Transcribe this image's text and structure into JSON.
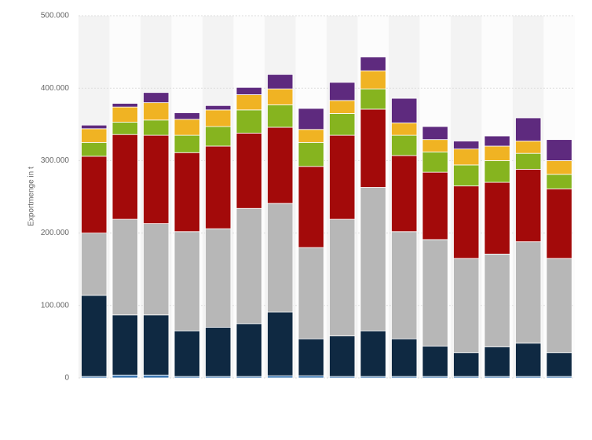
{
  "chart_data": {
    "type": "stacked_bar",
    "y_label": "Exportmenge in t",
    "categories": [
      null,
      null,
      null,
      null,
      null,
      null,
      null,
      null,
      null,
      null,
      null,
      null,
      null,
      null,
      null,
      null
    ],
    "series": [
      {
        "color": "#3a75b0",
        "values": [
          2000,
          4000,
          4000,
          2000,
          2000,
          2000,
          3000,
          3000,
          2000,
          2000,
          2000,
          2000,
          2000,
          2000,
          2000,
          2000
        ]
      },
      {
        "color": "#0f2942",
        "values": [
          112000,
          83000,
          83000,
          63000,
          68000,
          73000,
          88000,
          51000,
          56000,
          63000,
          52000,
          42000,
          33000,
          41000,
          46000,
          33000
        ]
      },
      {
        "color": "#b7b7b7",
        "values": [
          86000,
          132000,
          126000,
          137000,
          136000,
          159000,
          150000,
          126000,
          161000,
          198000,
          148000,
          147000,
          130000,
          128000,
          140000,
          130000
        ]
      },
      {
        "color": "#a30a0a",
        "values": [
          106000,
          117000,
          122000,
          109000,
          114000,
          104000,
          105000,
          112000,
          116000,
          108000,
          105000,
          93000,
          100000,
          99000,
          100000,
          96000
        ]
      },
      {
        "color": "#86b41f",
        "values": [
          19000,
          17000,
          21000,
          24000,
          27000,
          32000,
          31000,
          33000,
          30000,
          28000,
          28000,
          28000,
          29000,
          30000,
          22000,
          20000
        ]
      },
      {
        "color": "#f0b323",
        "values": [
          19000,
          21000,
          24000,
          22000,
          23000,
          21000,
          22000,
          18000,
          18000,
          25000,
          17000,
          17000,
          22000,
          20000,
          17000,
          19000
        ]
      },
      {
        "color": "#5e2a7e",
        "values": [
          5000,
          5000,
          14000,
          9000,
          6000,
          10000,
          20000,
          29000,
          25000,
          19000,
          34000,
          18000,
          11000,
          14000,
          32000,
          29000
        ]
      }
    ],
    "ylim": [
      0,
      500000
    ],
    "yticks": [
      0,
      {
        "value": 100000,
        "label": "100.000"
      },
      {
        "value": 200000,
        "label": "200.000"
      },
      {
        "value": 300000,
        "label": "300.000"
      },
      {
        "value": 400000,
        "label": "400.000"
      },
      {
        "value": 500000,
        "label": "500.000"
      }
    ],
    "grid": true
  }
}
